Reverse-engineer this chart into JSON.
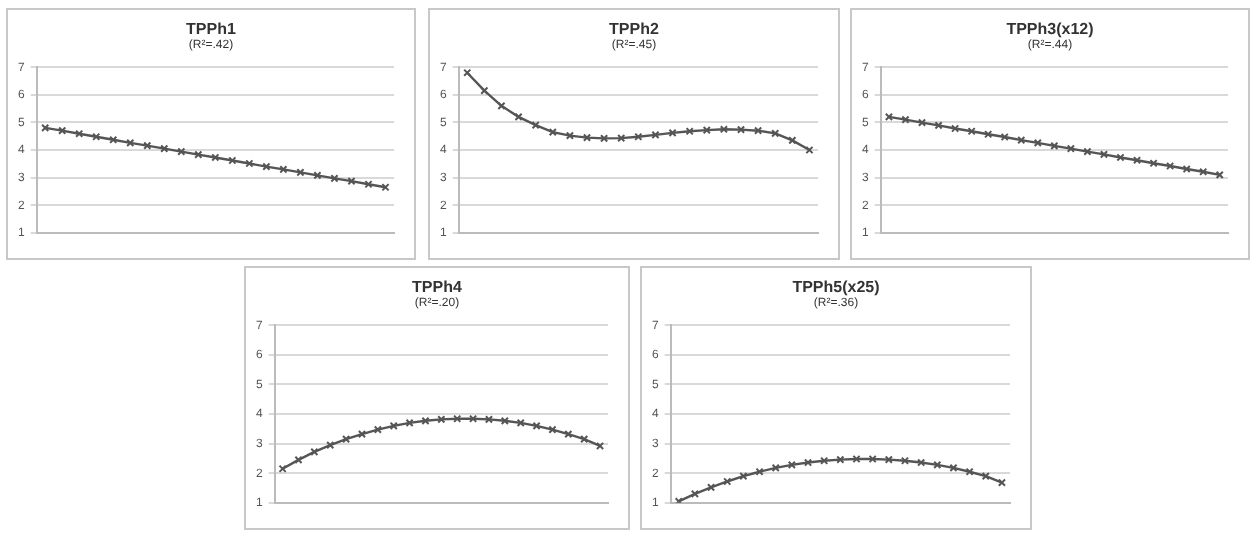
{
  "chart_data": [
    {
      "type": "line",
      "title": "TPPh1",
      "subtitle": "(R²=.42)",
      "categories": [
        null,
        null,
        null,
        null,
        null,
        null,
        null,
        null,
        null,
        null,
        null,
        null,
        null,
        null,
        null,
        null,
        null,
        null,
        null,
        null,
        null
      ],
      "series": [
        {
          "color": "#555555",
          "values": [
            4.8,
            4.7,
            4.59,
            4.48,
            4.37,
            4.26,
            4.16,
            4.05,
            3.94,
            3.83,
            3.73,
            3.62,
            3.51,
            3.4,
            3.3,
            3.19,
            3.08,
            2.97,
            2.87,
            2.76,
            2.65
          ]
        }
      ],
      "ylim": [
        1,
        7
      ],
      "yticks": [
        1,
        2,
        3,
        4,
        5,
        6,
        7
      ],
      "grid": "y",
      "tick_labels": "y",
      "marker": "cross",
      "legend": false
    },
    {
      "type": "line",
      "title": "TPPh2",
      "subtitle": "(R²=.45)",
      "categories": [
        null,
        null,
        null,
        null,
        null,
        null,
        null,
        null,
        null,
        null,
        null,
        null,
        null,
        null,
        null,
        null,
        null,
        null,
        null,
        null,
        null
      ],
      "series": [
        {
          "color": "#555555",
          "values": [
            6.8,
            6.15,
            5.6,
            5.2,
            4.9,
            4.65,
            4.52,
            4.45,
            4.42,
            4.43,
            4.48,
            4.55,
            4.62,
            4.68,
            4.72,
            4.75,
            4.74,
            4.7,
            4.6,
            4.35,
            4.0
          ]
        }
      ],
      "ylim": [
        1,
        7
      ],
      "yticks": [
        1,
        2,
        3,
        4,
        5,
        6,
        7
      ],
      "grid": "y",
      "tick_labels": "y",
      "marker": "cross",
      "legend": false
    },
    {
      "type": "line",
      "title": "TPPh3(x12)",
      "subtitle": "(R²=.44)",
      "categories": [
        null,
        null,
        null,
        null,
        null,
        null,
        null,
        null,
        null,
        null,
        null,
        null,
        null,
        null,
        null,
        null,
        null,
        null,
        null,
        null,
        null
      ],
      "series": [
        {
          "color": "#555555",
          "values": [
            5.2,
            5.1,
            4.99,
            4.89,
            4.78,
            4.68,
            4.57,
            4.47,
            4.36,
            4.26,
            4.15,
            4.05,
            3.94,
            3.84,
            3.73,
            3.63,
            3.52,
            3.42,
            3.31,
            3.21,
            3.1
          ]
        }
      ],
      "ylim": [
        1,
        7
      ],
      "yticks": [
        1,
        2,
        3,
        4,
        5,
        6,
        7
      ],
      "grid": "y",
      "tick_labels": "y",
      "marker": "cross",
      "legend": false
    },
    {
      "type": "line",
      "title": "TPPh4",
      "subtitle": "(R²=.20)",
      "categories": [
        null,
        null,
        null,
        null,
        null,
        null,
        null,
        null,
        null,
        null,
        null,
        null,
        null,
        null,
        null,
        null,
        null,
        null,
        null,
        null,
        null
      ],
      "series": [
        {
          "color": "#555555",
          "values": [
            2.15,
            2.45,
            2.72,
            2.95,
            3.15,
            3.32,
            3.47,
            3.6,
            3.7,
            3.77,
            3.82,
            3.84,
            3.84,
            3.82,
            3.77,
            3.7,
            3.6,
            3.47,
            3.32,
            3.15,
            2.92
          ]
        }
      ],
      "ylim": [
        1,
        7
      ],
      "yticks": [
        1,
        2,
        3,
        4,
        5,
        6,
        7
      ],
      "grid": "y",
      "tick_labels": "y",
      "marker": "cross",
      "legend": false
    },
    {
      "type": "line",
      "title": "TPPh5(x25)",
      "subtitle": "(R²=.36)",
      "categories": [
        null,
        null,
        null,
        null,
        null,
        null,
        null,
        null,
        null,
        null,
        null,
        null,
        null,
        null,
        null,
        null,
        null,
        null,
        null,
        null,
        null
      ],
      "series": [
        {
          "color": "#555555",
          "values": [
            1.05,
            1.3,
            1.52,
            1.72,
            1.9,
            2.05,
            2.18,
            2.28,
            2.36,
            2.42,
            2.46,
            2.48,
            2.48,
            2.46,
            2.42,
            2.36,
            2.28,
            2.18,
            2.05,
            1.9,
            1.68
          ]
        }
      ],
      "ylim": [
        1,
        7
      ],
      "yticks": [
        1,
        2,
        3,
        4,
        5,
        6,
        7
      ],
      "grid": "y",
      "tick_labels": "y",
      "marker": "cross",
      "legend": false
    }
  ]
}
